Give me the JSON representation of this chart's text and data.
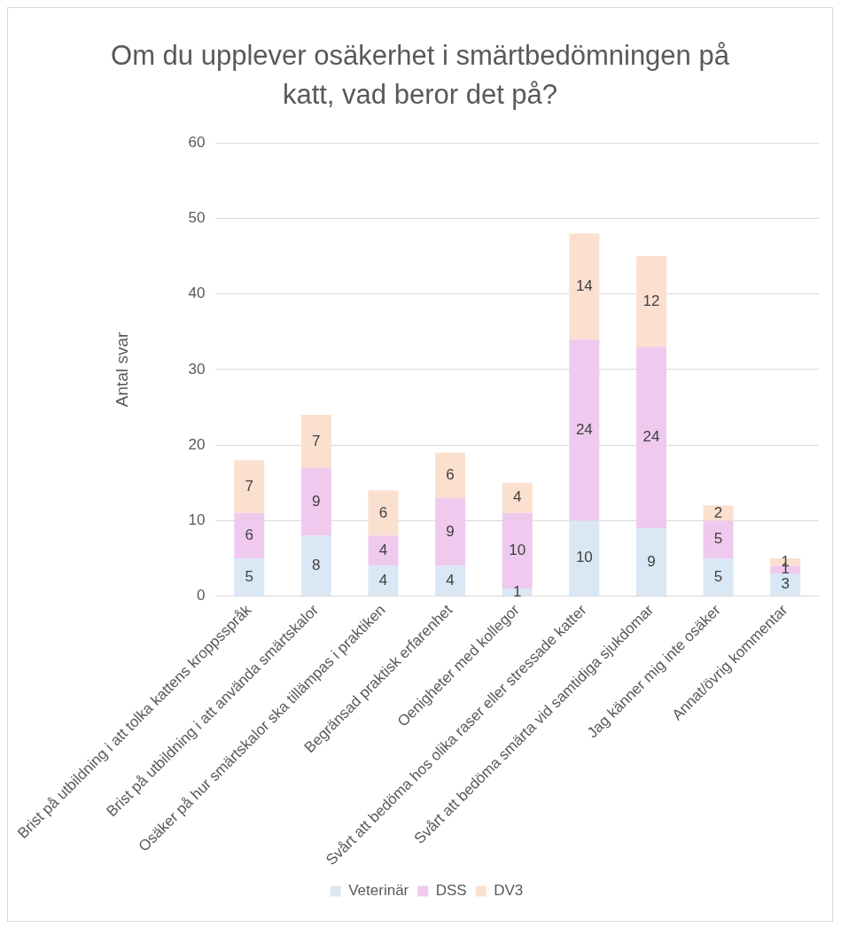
{
  "chart_data": {
    "type": "bar",
    "title": "Om du upplever osäkerhet i smärtbedömningen på katt, vad beror det på?",
    "ylabel": "Antal svar",
    "categories": [
      "Brist på utbildning i att tolka kattens kroppsspråk",
      "Brist på utbildning i att använda smärtskalor",
      "Osäker på hur smärtskalor ska tillämpas i praktiken",
      "Begränsad praktisk erfarenhet",
      "Oenigheter med kollegor",
      "Svårt att bedöma hos olika raser eller stressade katter",
      "Svårt att bedöma smärta vid samtidiga sjukdomar",
      "Jag känner mig inte osäker",
      "Annat/övrig kommentar"
    ],
    "series": [
      {
        "name": "Veterinär",
        "color": "#dae8f5",
        "values": [
          5,
          8,
          4,
          4,
          1,
          10,
          9,
          5,
          3
        ]
      },
      {
        "name": "DSS",
        "color": "#efcaee",
        "values": [
          6,
          9,
          4,
          9,
          10,
          24,
          24,
          5,
          1
        ]
      },
      {
        "name": "DV3",
        "color": "#fbe0cf",
        "values": [
          7,
          7,
          6,
          6,
          4,
          14,
          12,
          2,
          1
        ]
      }
    ],
    "stacked": true,
    "ylim": [
      0,
      60
    ],
    "yticks": [
      0,
      10,
      20,
      30,
      40,
      50,
      60
    ],
    "grid": "y",
    "legend": "bottom",
    "data_labels": true
  }
}
